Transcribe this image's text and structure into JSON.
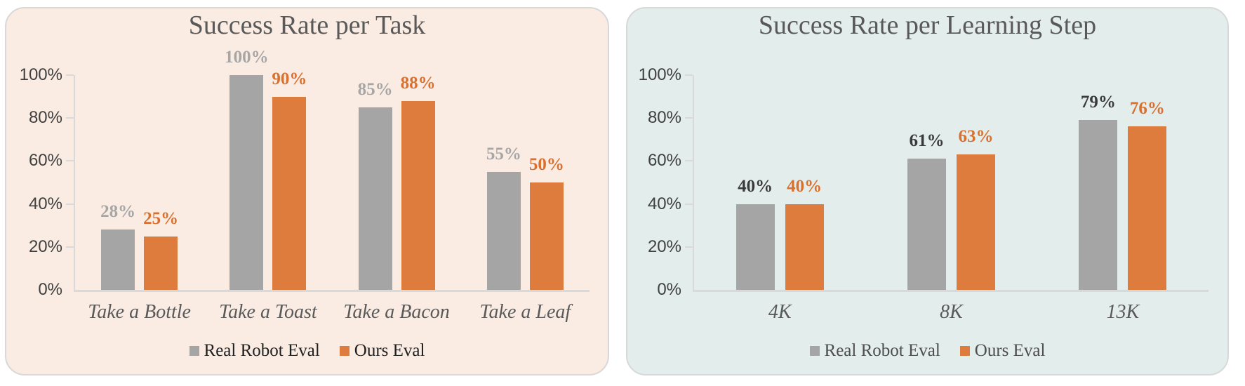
{
  "chart_data": [
    {
      "type": "bar",
      "title": "Success Rate per Task",
      "categories": [
        "Take a Bottle",
        "Take a Toast",
        "Take a Bacon",
        "Take a Leaf"
      ],
      "series": [
        {
          "name": "Real Robot Eval",
          "values": [
            28,
            100,
            85,
            55
          ]
        },
        {
          "name": "Ours Eval",
          "values": [
            25,
            90,
            88,
            50
          ]
        }
      ],
      "ylim": [
        0,
        100
      ],
      "ytick_labels": [
        "0%",
        "20%",
        "40%",
        "60%",
        "80%",
        "100%"
      ],
      "legend_position": "bottom",
      "style": {
        "panel_bg": "#FAECE3",
        "panel_border": "#D8D8D8",
        "bar_colors": [
          "#A5A5A5",
          "#DE7C3D"
        ],
        "data_label_colors": [
          "#A6A6A6",
          "#D9702F"
        ],
        "legend_text_color": "#1F1F1F",
        "title_color": "#595959",
        "axis_color": "#D9D9D9"
      }
    },
    {
      "type": "bar",
      "title": "Success Rate per Learning Step",
      "categories": [
        "4K",
        "8K",
        "13K"
      ],
      "series": [
        {
          "name": "Real Robot Eval",
          "values": [
            40,
            61,
            79
          ]
        },
        {
          "name": "Ours Eval",
          "values": [
            40,
            63,
            76
          ]
        }
      ],
      "ylim": [
        0,
        100
      ],
      "ytick_labels": [
        "0%",
        "20%",
        "40%",
        "60%",
        "80%",
        "100%"
      ],
      "legend_position": "bottom",
      "style": {
        "panel_bg": "#E3EDEB",
        "panel_border": "#D8D8D8",
        "bar_colors": [
          "#A5A5A5",
          "#DE7C3D"
        ],
        "data_label_colors": [
          "#3A3A3A",
          "#D9702F"
        ],
        "legend_text_color": "#4D4D4D",
        "title_color": "#595959",
        "axis_color": "#D9D9D9"
      }
    }
  ]
}
